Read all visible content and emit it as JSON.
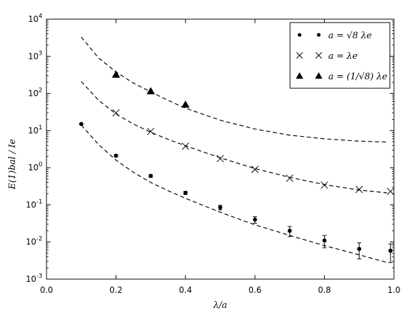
{
  "chart_data": {
    "type": "scatter",
    "xlabel": "λ/a",
    "ylabel": "E(1)bal / Ie",
    "xlim": [
      0.0,
      1.0
    ],
    "ylim": [
      0.001,
      10000
    ],
    "yscale": "log",
    "x_ticks": [
      0.0,
      0.2,
      0.4,
      0.6,
      0.8,
      1.0
    ],
    "x_tick_labels": [
      "0.0",
      "0.2",
      "0.4",
      "0.6",
      "0.8",
      "1.0"
    ],
    "y_ticks": [
      0.001,
      0.01,
      0.1,
      1,
      10,
      100,
      1000,
      10000
    ],
    "y_tick_labels": [
      {
        "base": "10",
        "exp": "-3"
      },
      {
        "base": "10",
        "exp": "-2"
      },
      {
        "base": "10",
        "exp": "-1"
      },
      {
        "base": "10",
        "exp": "0"
      },
      {
        "base": "10",
        "exp": "1"
      },
      {
        "base": "10",
        "exp": "2"
      },
      {
        "base": "10",
        "exp": "3"
      },
      {
        "base": "10",
        "exp": "4"
      }
    ],
    "grid": false,
    "legend_position": "top-right",
    "series": [
      {
        "name": "a = √8 λe",
        "marker": "circle",
        "color": "#000000",
        "x": [
          0.1,
          0.2,
          0.3,
          0.4,
          0.5,
          0.6,
          0.7,
          0.8,
          0.9,
          0.99
        ],
        "y": [
          15,
          2.1,
          0.6,
          0.21,
          0.085,
          0.04,
          0.02,
          0.011,
          0.0065,
          0.0058
        ],
        "err_low": [
          0.5,
          0.15,
          0.05,
          0.02,
          0.012,
          0.008,
          0.006,
          0.004,
          0.003,
          0.003
        ],
        "err_high": [
          0.5,
          0.15,
          0.05,
          0.02,
          0.012,
          0.008,
          0.006,
          0.004,
          0.003,
          0.003
        ]
      },
      {
        "name": "a = λe",
        "marker": "x",
        "color": "#000000",
        "x": [
          0.2,
          0.3,
          0.4,
          0.5,
          0.6,
          0.7,
          0.8,
          0.9,
          0.99
        ],
        "y": [
          30,
          9.5,
          3.8,
          1.75,
          0.9,
          0.52,
          0.34,
          0.26,
          0.23
        ]
      },
      {
        "name": "a = (1/√8) λe",
        "marker": "triangle",
        "color": "#000000",
        "x": [
          0.2,
          0.3,
          0.4
        ],
        "y": [
          320,
          115,
          50
        ]
      }
    ],
    "curves": [
      {
        "style": "dashed",
        "color": "#000000",
        "x": [
          0.1,
          0.15,
          0.2,
          0.25,
          0.3,
          0.35,
          0.4,
          0.5,
          0.6,
          0.7,
          0.8,
          0.9,
          0.98
        ],
        "y": [
          3300,
          900,
          380,
          190,
          110,
          65,
          40,
          19,
          11,
          7.5,
          6,
          5.2,
          4.9
        ]
      },
      {
        "style": "dashed",
        "color": "#000000",
        "x": [
          0.1,
          0.15,
          0.2,
          0.25,
          0.3,
          0.35,
          0.4,
          0.5,
          0.6,
          0.7,
          0.8,
          0.9,
          0.98
        ],
        "y": [
          210,
          65,
          28,
          15,
          9,
          5.8,
          3.9,
          1.85,
          0.95,
          0.55,
          0.35,
          0.25,
          0.21
        ]
      },
      {
        "style": "dashed",
        "color": "#000000",
        "x": [
          0.1,
          0.15,
          0.2,
          0.25,
          0.3,
          0.35,
          0.4,
          0.5,
          0.6,
          0.7,
          0.8,
          0.9,
          0.98
        ],
        "y": [
          14,
          4.2,
          1.6,
          0.75,
          0.4,
          0.24,
          0.15,
          0.063,
          0.029,
          0.015,
          0.008,
          0.0045,
          0.0028
        ]
      }
    ]
  }
}
